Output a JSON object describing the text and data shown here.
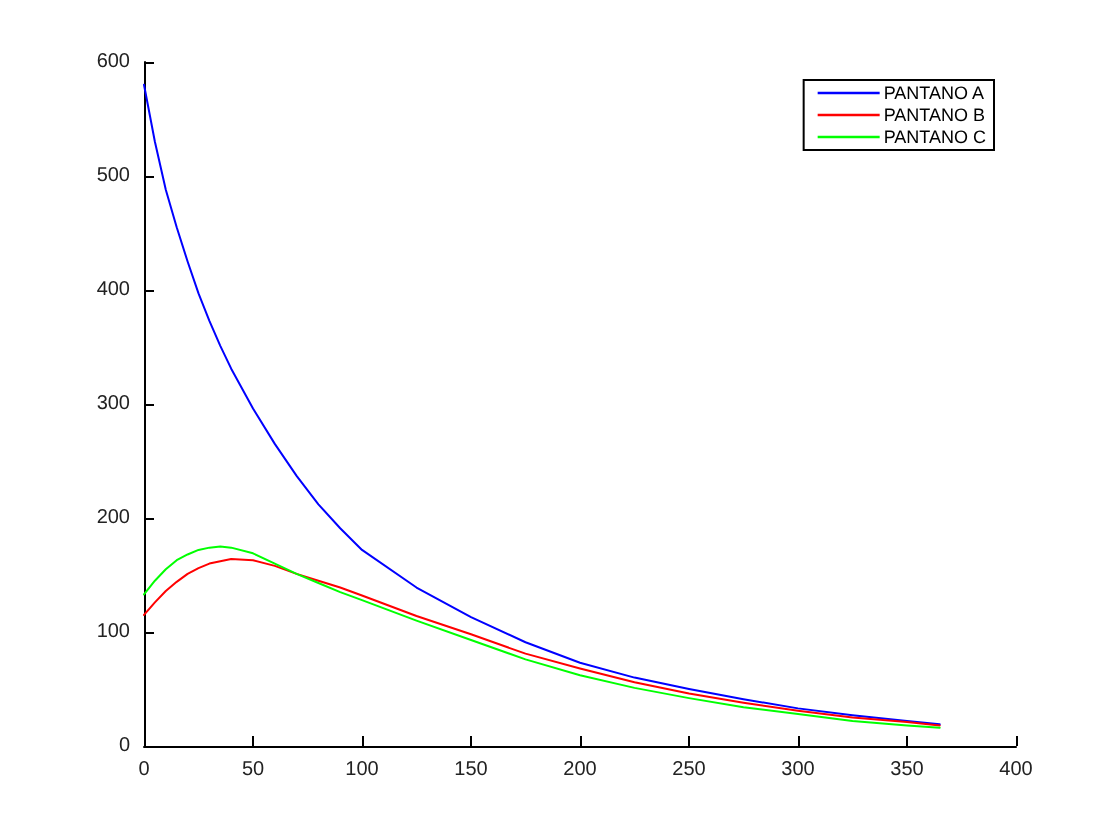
{
  "chart_data": {
    "type": "line",
    "x": [
      0,
      5,
      10,
      15,
      20,
      25,
      30,
      35,
      40,
      50,
      60,
      70,
      80,
      90,
      100,
      125,
      150,
      175,
      200,
      225,
      250,
      275,
      300,
      325,
      350,
      365
    ],
    "series": [
      {
        "name": "PANTANO A",
        "color": "#0000ff",
        "values": [
          580,
          530,
          488,
          455,
          425,
          397,
          373,
          351,
          331,
          296,
          265,
          237,
          212,
          191,
          172,
          139,
          113,
          91,
          73,
          60,
          50,
          41,
          33,
          27,
          22,
          19
        ]
      },
      {
        "name": "PANTANO B",
        "color": "#ff0000",
        "values": [
          115,
          126,
          136,
          144,
          151,
          156,
          160,
          162,
          164,
          163,
          158,
          151,
          145,
          139,
          132,
          114,
          98,
          81,
          68,
          56,
          46,
          38,
          31,
          25,
          21,
          18
        ]
      },
      {
        "name": "PANTANO C",
        "color": "#00ff00",
        "values": [
          133,
          145,
          155,
          163,
          168,
          172,
          174,
          175,
          174,
          169,
          160,
          151,
          143,
          135,
          128,
          110,
          93,
          76,
          62,
          51,
          42,
          34,
          28,
          22,
          18,
          16
        ]
      }
    ],
    "xlim": [
      0,
      400
    ],
    "xticks": [
      0,
      50,
      100,
      150,
      200,
      250,
      300,
      350,
      400
    ],
    "ylim": [
      0,
      600
    ],
    "yticks": [
      0,
      100,
      200,
      300,
      400,
      500,
      600
    ],
    "legend": "top right",
    "marker": "none",
    "line_style": "solid"
  }
}
